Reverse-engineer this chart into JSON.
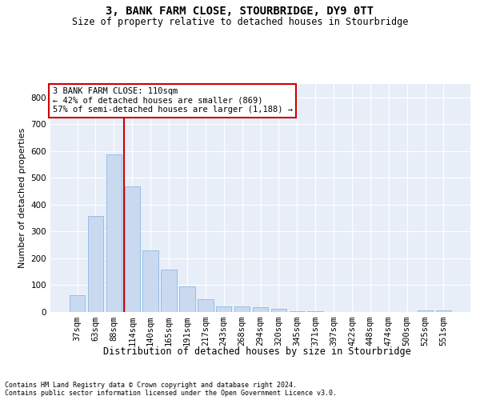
{
  "title": "3, BANK FARM CLOSE, STOURBRIDGE, DY9 0TT",
  "subtitle": "Size of property relative to detached houses in Stourbridge",
  "xlabel": "Distribution of detached houses by size in Stourbridge",
  "ylabel": "Number of detached properties",
  "footnote1": "Contains HM Land Registry data © Crown copyright and database right 2024.",
  "footnote2": "Contains public sector information licensed under the Open Government Licence v3.0.",
  "annotation_title": "3 BANK FARM CLOSE: 110sqm",
  "annotation_line1": "← 42% of detached houses are smaller (869)",
  "annotation_line2": "57% of semi-detached houses are larger (1,188) →",
  "bar_color": "#c9d9f0",
  "bar_edge_color": "#8cb8e0",
  "vline_color": "#cc0000",
  "annotation_box_edge": "#cc0000",
  "background_color": "#e8eef8",
  "grid_color": "#ffffff",
  "categories": [
    "37sqm",
    "63sqm",
    "88sqm",
    "114sqm",
    "140sqm",
    "165sqm",
    "191sqm",
    "217sqm",
    "243sqm",
    "268sqm",
    "294sqm",
    "320sqm",
    "345sqm",
    "371sqm",
    "397sqm",
    "422sqm",
    "448sqm",
    "474sqm",
    "500sqm",
    "525sqm",
    "551sqm"
  ],
  "values": [
    62,
    357,
    588,
    467,
    229,
    157,
    95,
    48,
    22,
    20,
    18,
    13,
    4,
    2,
    1,
    1,
    0,
    1,
    0,
    7,
    6
  ],
  "vline_bar_index": 3,
  "ylim": [
    0,
    850
  ],
  "yticks": [
    0,
    100,
    200,
    300,
    400,
    500,
    600,
    700,
    800
  ],
  "title_fontsize": 10,
  "subtitle_fontsize": 8.5,
  "ylabel_fontsize": 8,
  "xlabel_fontsize": 8.5,
  "tick_fontsize": 7.5,
  "annotation_fontsize": 7.5,
  "footnote_fontsize": 6.0
}
